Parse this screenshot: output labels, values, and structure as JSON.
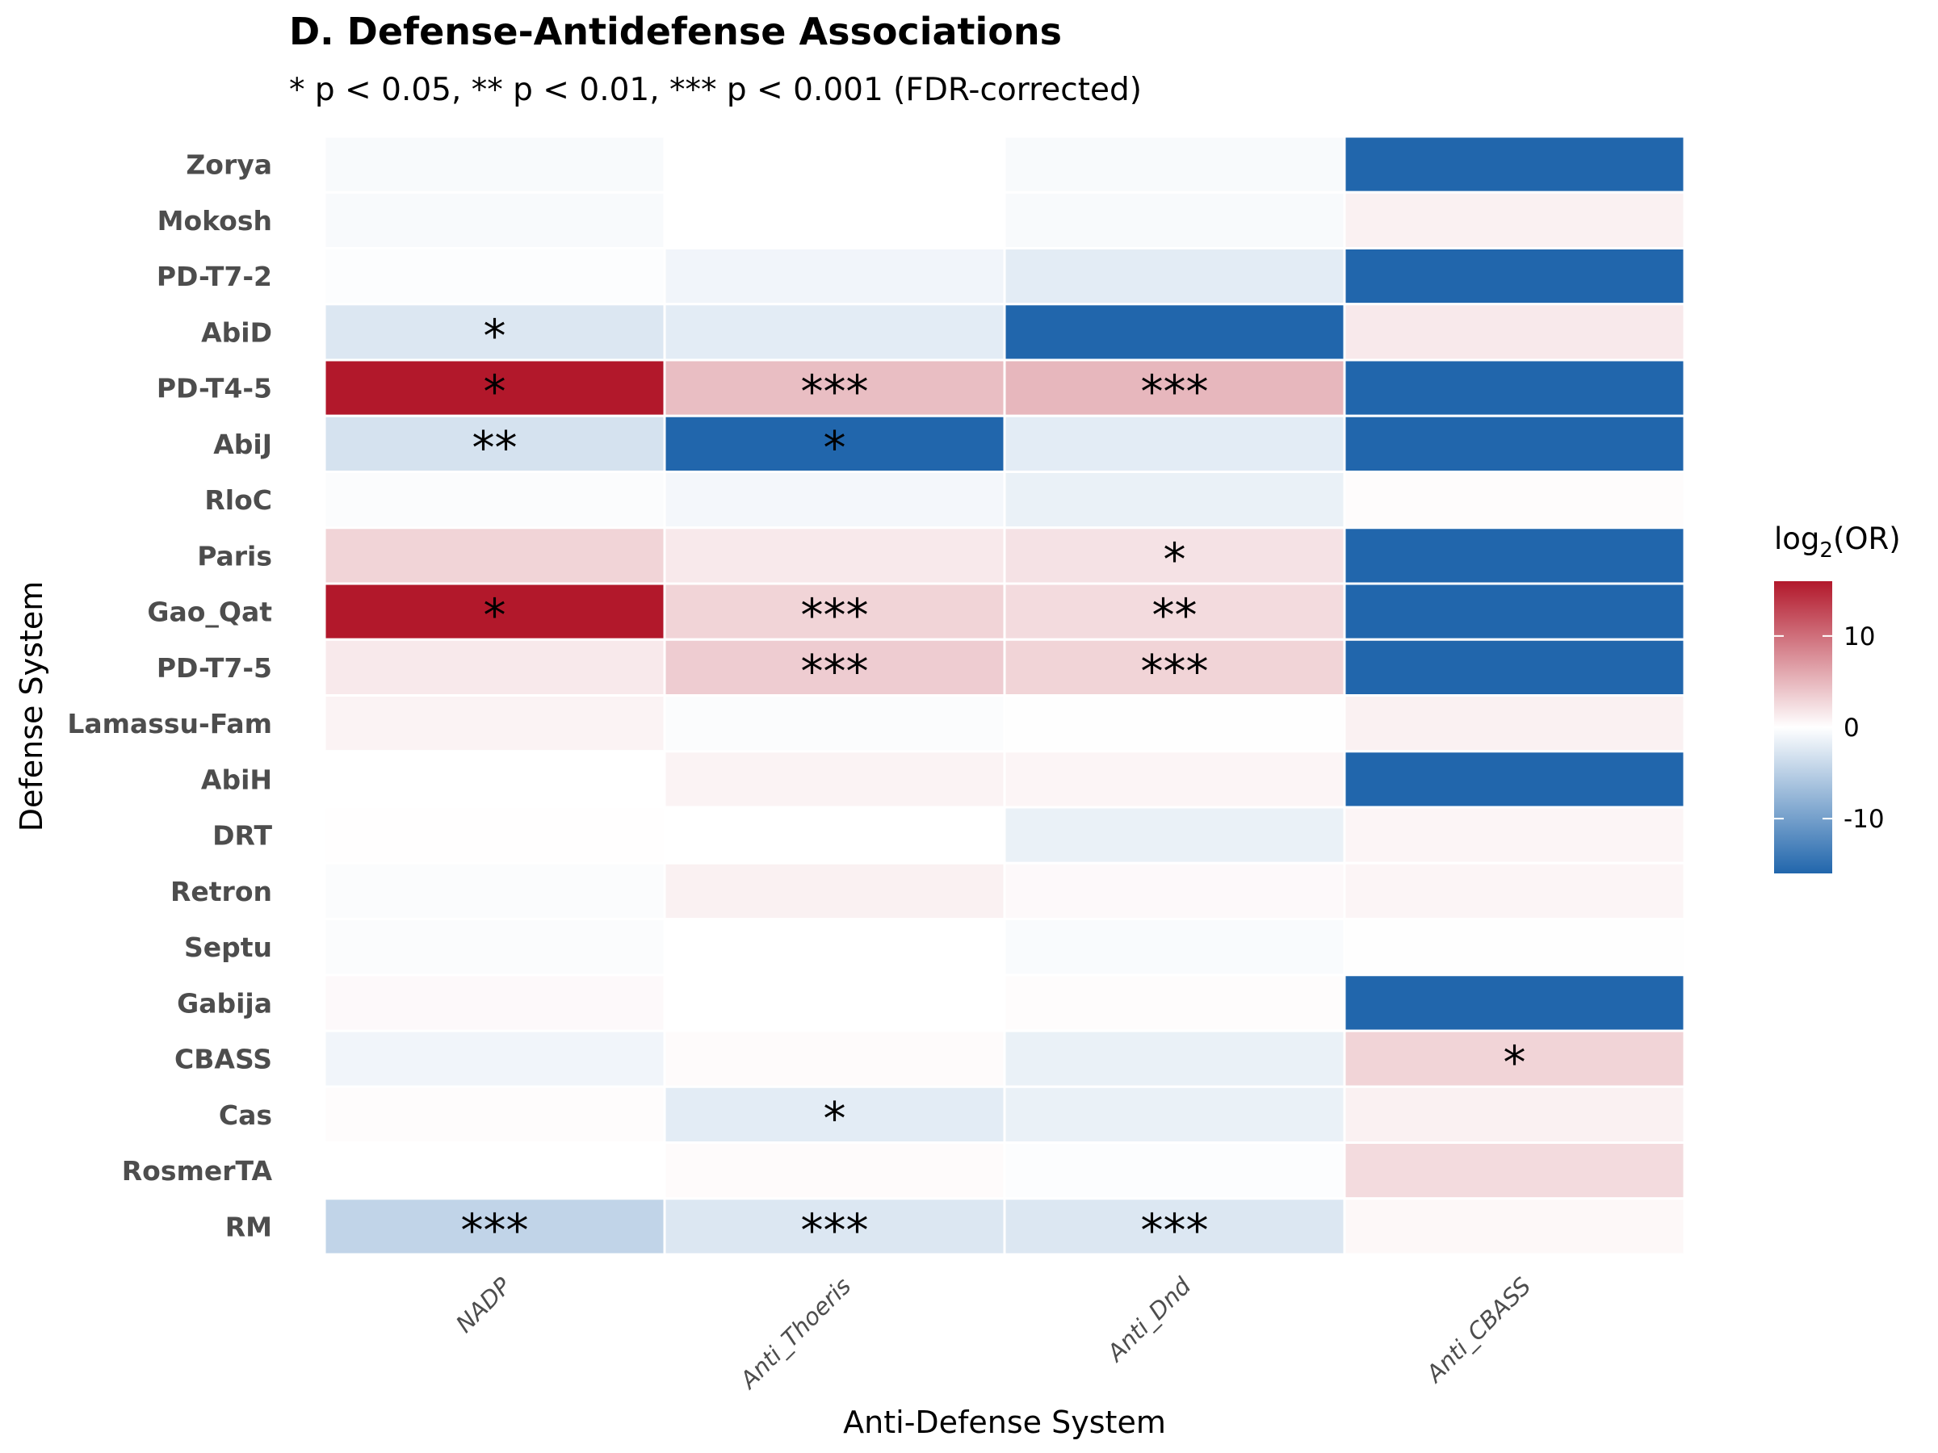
{
  "chart_data": {
    "type": "heatmap",
    "title": "D. Defense-Antidefense Associations",
    "subtitle": "* p < 0.05, ** p < 0.01, *** p < 0.001 (FDR-corrected)",
    "xlabel": "Anti-Defense System",
    "ylabel": "Defense System",
    "x": [
      "NADP",
      "Anti_Thoeris",
      "Anti_Dnd",
      "Anti_CBASS"
    ],
    "y": [
      "Zorya",
      "Mokosh",
      "PD-T7-2",
      "AbiD",
      "PD-T4-5",
      "AbiJ",
      "RloC",
      "Paris",
      "Gao_Qat",
      "PD-T7-5",
      "Lamassu-Fam",
      "AbiH",
      "DRT",
      "Retron",
      "Septu",
      "Gabija",
      "CBASS",
      "Cas",
      "RosmerTA",
      "RM"
    ],
    "values": [
      [
        -0.5,
        0,
        -0.5,
        -16
      ],
      [
        -0.5,
        0,
        -0.5,
        1
      ],
      [
        -0.2,
        -1,
        -2,
        -16
      ],
      [
        -2.5,
        -2,
        -16,
        1.5
      ],
      [
        16,
        4.5,
        5,
        -16
      ],
      [
        -3,
        -16,
        -2,
        -16
      ],
      [
        -0.3,
        -0.8,
        -1.5,
        0.2
      ],
      [
        3,
        1.5,
        2,
        -16
      ],
      [
        16,
        3,
        2.5,
        -16
      ],
      [
        1.5,
        3.5,
        3,
        -16
      ],
      [
        0.8,
        -0.3,
        -0.1,
        1
      ],
      [
        0,
        0.8,
        0.7,
        -16
      ],
      [
        0.1,
        0,
        -1.5,
        0.7
      ],
      [
        -0.3,
        1,
        0.4,
        0.7
      ],
      [
        -0.3,
        0,
        -0.4,
        -0.1
      ],
      [
        0.4,
        0,
        0.2,
        -16
      ],
      [
        -1,
        0.3,
        -1.5,
        3
      ],
      [
        0.2,
        -2,
        -1.5,
        1
      ],
      [
        0,
        0.3,
        -0.2,
        2.5
      ],
      [
        -4.5,
        -2.5,
        -2.5,
        0.5
      ]
    ],
    "significance": [
      [
        "",
        "",
        "",
        ""
      ],
      [
        "",
        "",
        "",
        ""
      ],
      [
        "",
        "",
        "",
        ""
      ],
      [
        "*",
        "",
        "",
        ""
      ],
      [
        "*",
        "***",
        "***",
        ""
      ],
      [
        "**",
        "*",
        "",
        ""
      ],
      [
        "",
        "",
        "",
        ""
      ],
      [
        "",
        "",
        "*",
        ""
      ],
      [
        "*",
        "***",
        "**",
        ""
      ],
      [
        "",
        "***",
        "***",
        ""
      ],
      [
        "",
        "",
        "",
        ""
      ],
      [
        "",
        "",
        "",
        ""
      ],
      [
        "",
        "",
        "",
        ""
      ],
      [
        "",
        "",
        "",
        ""
      ],
      [
        "",
        "",
        "",
        ""
      ],
      [
        "",
        "",
        "",
        ""
      ],
      [
        "",
        "",
        "",
        "*"
      ],
      [
        "",
        "*",
        "",
        ""
      ],
      [
        "",
        "",
        "",
        ""
      ],
      [
        "***",
        "***",
        "***",
        ""
      ]
    ],
    "colorscale": {
      "low": "#2166ac",
      "mid": "#ffffff",
      "high": "#b2182b",
      "limits": [
        -16,
        16
      ],
      "midpoint": 0
    },
    "legend": {
      "title_main": "log",
      "title_sub": "2",
      "title_tail": "(OR)",
      "ticks": [
        10,
        0,
        -10
      ],
      "tick_labels": [
        "10",
        "0",
        "-10"
      ],
      "placement": "right"
    },
    "grid": false
  }
}
